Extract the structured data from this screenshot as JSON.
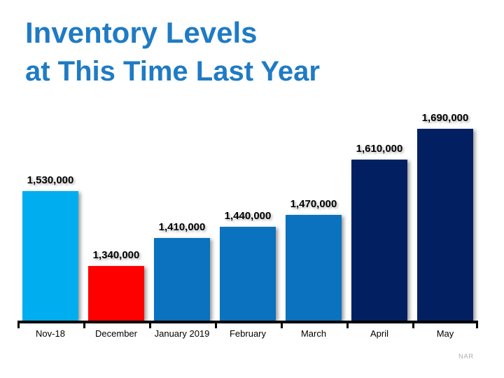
{
  "title": {
    "line1": "Inventory Levels",
    "line2": "at This Time Last Year",
    "color": "#1F7BC4"
  },
  "source": "NAR",
  "chart_data": {
    "type": "bar",
    "title": "Inventory Levels at This Time Last Year",
    "categories": [
      "Nov-18",
      "December",
      "January 2019",
      "February",
      "March",
      "April",
      "May"
    ],
    "values": [
      1530000,
      1340000,
      1410000,
      1440000,
      1470000,
      1610000,
      1690000
    ],
    "value_labels": [
      "1,530,000",
      "1,340,000",
      "1,410,000",
      "1,440,000",
      "1,470,000",
      "1,610,000",
      "1,690,000"
    ],
    "bar_colors": [
      "#00AEEF",
      "#FF0000",
      "#0A72BE",
      "#0A72BE",
      "#0A72BE",
      "#022061",
      "#022061"
    ],
    "xlabel": "",
    "ylabel": "",
    "ylim": [
      1200000,
      1750000
    ],
    "grid": false,
    "legend": false,
    "axis_color": "#000000",
    "source_note": "NAR"
  }
}
